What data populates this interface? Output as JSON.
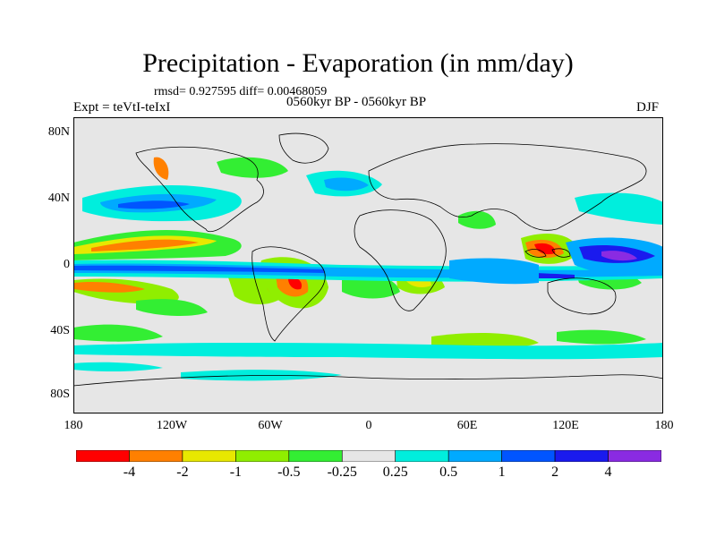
{
  "title": "Precipitation - Evaporation (in mm/day)",
  "stats": "rmsd= 0.927595 diff= 0.00468059",
  "period": "0560kyr BP - 0560kyr BP",
  "experiment": "Expt = teVtI-teIxI",
  "season": "DJF",
  "lat_labels": [
    "80N",
    "40N",
    "0",
    "40S",
    "80S"
  ],
  "lon_labels": [
    "180",
    "120W",
    "60W",
    "0",
    "60E",
    "120E",
    "180"
  ],
  "colorbar": {
    "labels": [
      "-4",
      "-2",
      "-1",
      "-0.5",
      "-0.25",
      "0.25",
      "0.5",
      "1",
      "2",
      "4"
    ],
    "colors": [
      "#ff0000",
      "#ff8000",
      "#e8e800",
      "#90ee00",
      "#33ee33",
      "#e6e6e6",
      "#00eedd",
      "#00aaff",
      "#0055ff",
      "#1a1aee",
      "#8a2be2"
    ]
  }
}
